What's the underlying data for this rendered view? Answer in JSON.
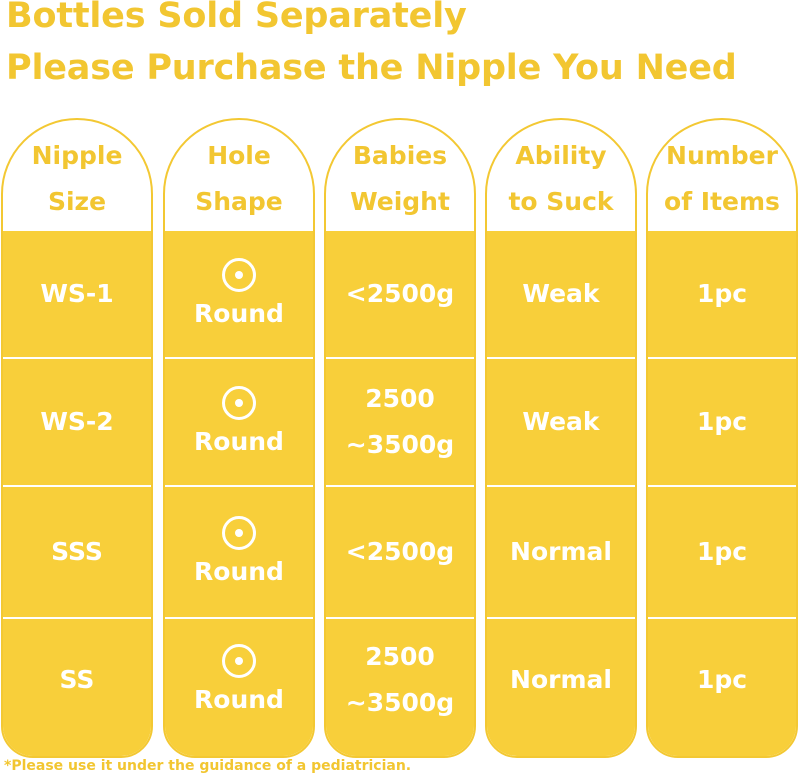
{
  "title_line1": "Bottles Sold Separately",
  "title_line2": "Please Purchase the Nipple You Need",
  "headers": [
    [
      "Nipple",
      "Size"
    ],
    [
      "Hole",
      "Shape"
    ],
    [
      "Babies",
      "Weight"
    ],
    [
      "Ability",
      "to Suck"
    ],
    [
      "Number",
      "of Items"
    ]
  ],
  "rows": [
    {
      "size": "WS-1",
      "shape": "Round",
      "weight": [
        "<2500g"
      ],
      "suck": "Weak",
      "items": "1pc"
    },
    {
      "size": "WS-2",
      "shape": "Round",
      "weight": [
        "2500",
        "~3500g"
      ],
      "suck": "Weak",
      "items": "1pc"
    },
    {
      "size": "SSS",
      "shape": "Round",
      "weight": [
        "<2500g"
      ],
      "suck": "Normal",
      "items": "1pc"
    },
    {
      "size": "SS",
      "shape": "Round",
      "weight": [
        "2500",
        "~3500g"
      ],
      "suck": "Normal",
      "items": "1pc"
    }
  ],
  "hole_icon": "round-hole-icon",
  "colors": {
    "accent": "#f2c631",
    "fill": "#f8cf3a",
    "text_on_fill": "#ffffff"
  },
  "footnote": "*Please use it under the guidance of a pediatrician."
}
